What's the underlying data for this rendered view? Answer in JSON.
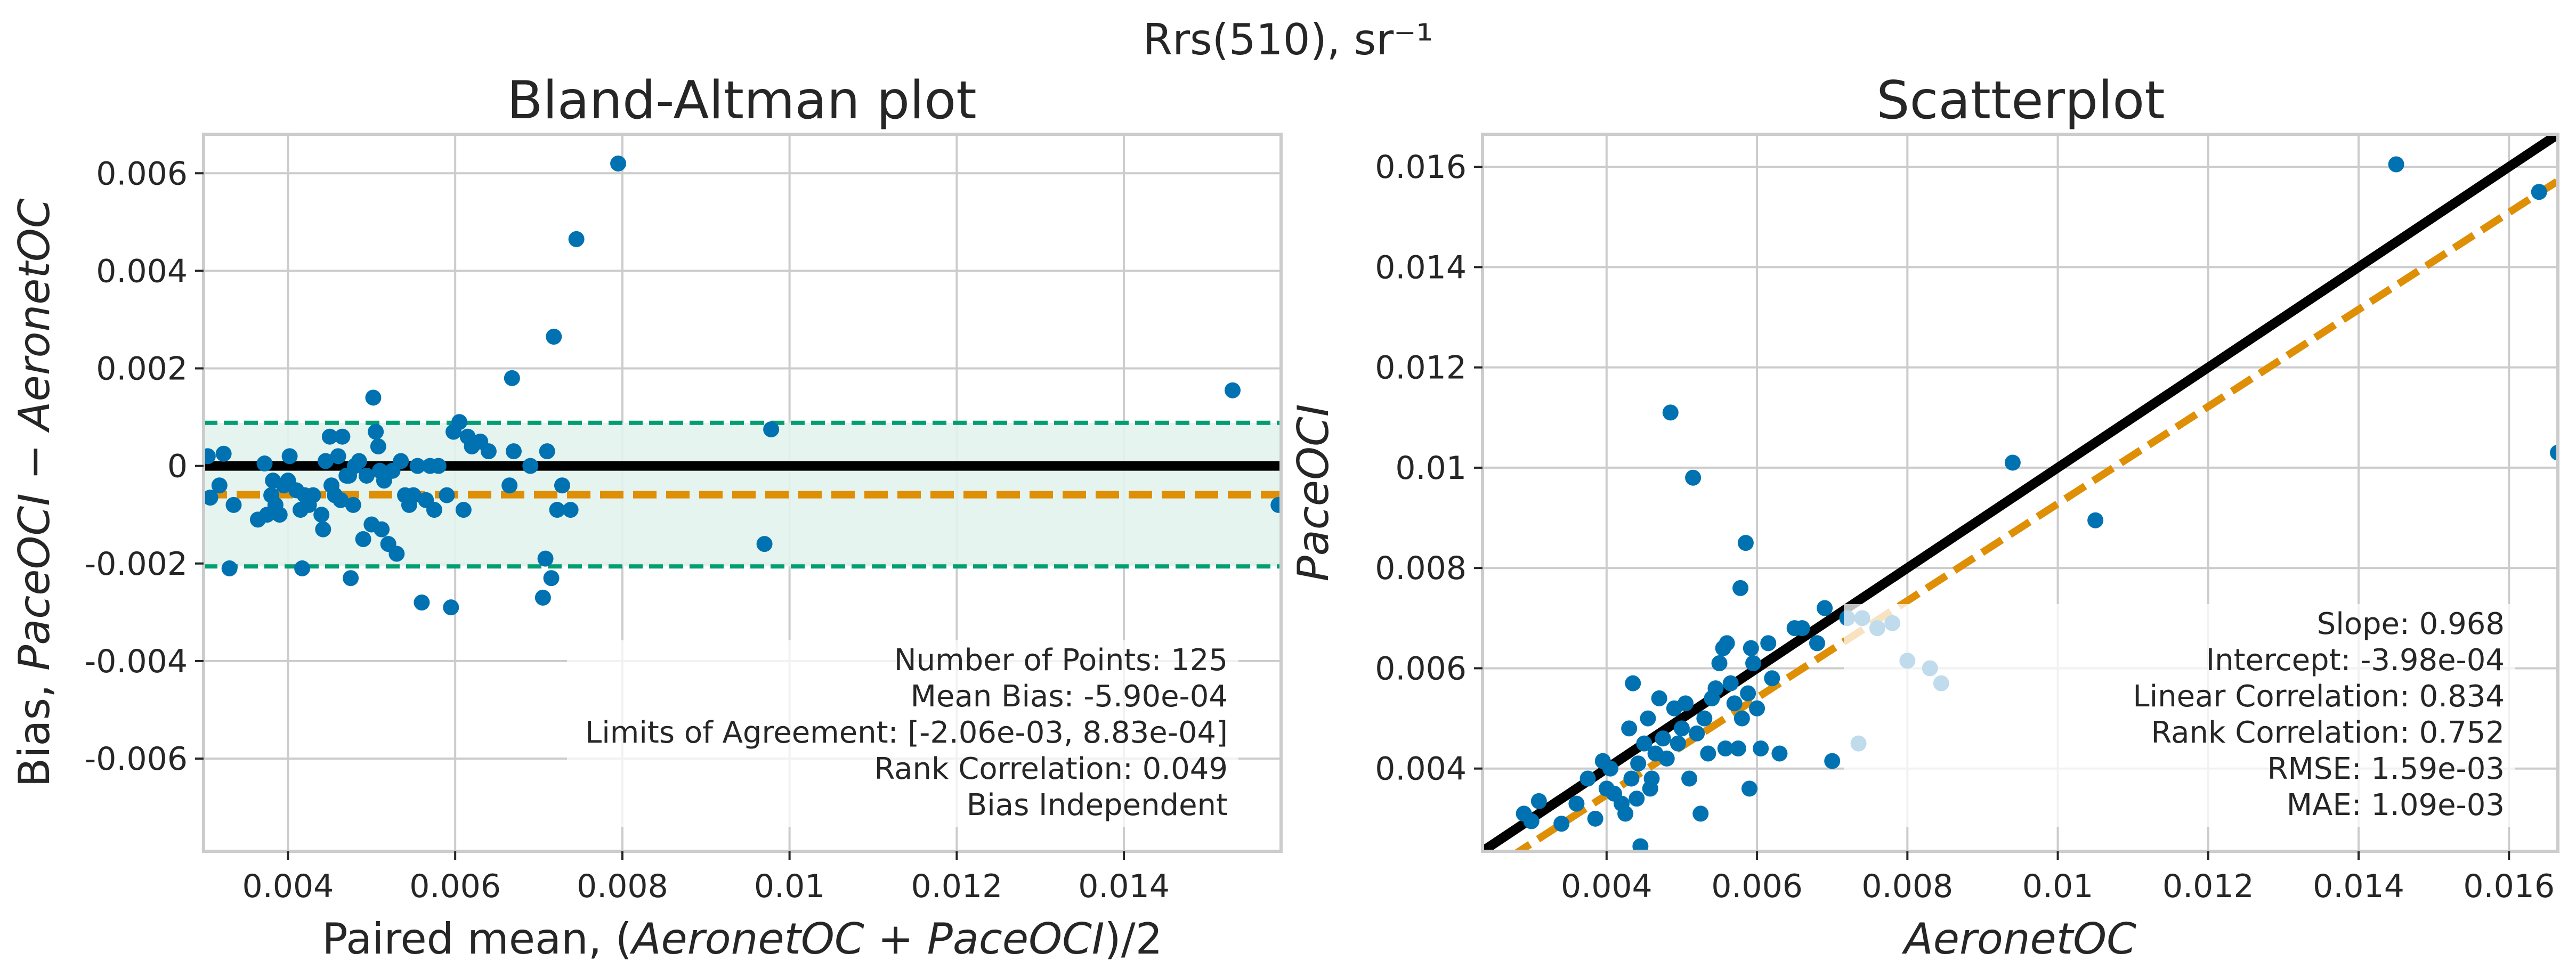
{
  "suptitle": "Rrs(510), sr⁻¹",
  "colors": {
    "points": "#0072b2",
    "identity_line": "#000000",
    "mean_bias_line": "#de8f05",
    "fit_line": "#de8f05",
    "limits_line": "#029e73",
    "limits_fill": "#e2f3ec",
    "grid": "#cccccc",
    "axes_edge": "#cccccc"
  },
  "chart_data": [
    {
      "type": "scatter",
      "title": "Bland-Altman plot",
      "xlabel_parts": [
        {
          "text": "Paired mean, (",
          "italic": false
        },
        {
          "text": "AeronetOC",
          "italic": true
        },
        {
          "text": " + ",
          "italic": false
        },
        {
          "text": "PaceOCI",
          "italic": true
        },
        {
          "text": ")/2",
          "italic": false
        }
      ],
      "ylabel_parts": [
        {
          "text": "Bias, ",
          "italic": false
        },
        {
          "text": "PaceOCI",
          "italic": true
        },
        {
          "text": " − ",
          "italic": false
        },
        {
          "text": "AeronetOC",
          "italic": true
        }
      ],
      "xlim": [
        0.00299,
        0.01588
      ],
      "ylim": [
        -0.0079,
        0.0068
      ],
      "xticks": [
        {
          "value": 0.004,
          "label": "0.004"
        },
        {
          "value": 0.006,
          "label": "0.006"
        },
        {
          "value": 0.008,
          "label": "0.008"
        },
        {
          "value": 0.01,
          "label": "0.01"
        },
        {
          "value": 0.012,
          "label": "0.012"
        },
        {
          "value": 0.014,
          "label": "0.014"
        }
      ],
      "yticks": [
        {
          "value": -0.006,
          "label": "-0.006"
        },
        {
          "value": -0.004,
          "label": "-0.004"
        },
        {
          "value": -0.002,
          "label": "-0.002"
        },
        {
          "value": 0,
          "label": "0"
        },
        {
          "value": 0.002,
          "label": "0.002"
        },
        {
          "value": 0.004,
          "label": "0.004"
        },
        {
          "value": 0.006,
          "label": "0.006"
        }
      ],
      "zero_line": 0,
      "mean_bias": -0.00059,
      "limits_of_agreement": [
        -0.00206,
        0.000883
      ],
      "points": [
        [
          0.00304,
          0.0002
        ],
        [
          0.00307,
          -0.00065
        ],
        [
          0.00318,
          -0.0004
        ],
        [
          0.00323,
          0.00025
        ],
        [
          0.0033,
          -0.0021
        ],
        [
          0.00335,
          -0.0008
        ],
        [
          0.00364,
          -0.0011
        ],
        [
          0.00372,
          5e-05
        ],
        [
          0.00375,
          -0.001
        ],
        [
          0.0038,
          -0.0006
        ],
        [
          0.00382,
          -0.0003
        ],
        [
          0.00385,
          -0.0008
        ],
        [
          0.0039,
          -0.001
        ],
        [
          0.00395,
          -0.0004
        ],
        [
          0.004,
          -0.0003
        ],
        [
          0.00402,
          0.0002
        ],
        [
          0.0041,
          -0.0005
        ],
        [
          0.00415,
          -0.0009
        ],
        [
          0.00417,
          -0.0021
        ],
        [
          0.0042,
          -0.0006
        ],
        [
          0.00425,
          -0.0008
        ],
        [
          0.0043,
          -0.0006
        ],
        [
          0.0044,
          -0.001
        ],
        [
          0.00442,
          -0.0013
        ],
        [
          0.00445,
          0.0001
        ],
        [
          0.0045,
          0.0006
        ],
        [
          0.00452,
          -0.0004
        ],
        [
          0.00456,
          -0.0006
        ],
        [
          0.0046,
          0.0002
        ],
        [
          0.00463,
          -0.0007
        ],
        [
          0.00465,
          0.0006
        ],
        [
          0.0047,
          -0.0002
        ],
        [
          0.00473,
          -0.0002
        ],
        [
          0.00475,
          -0.0023
        ],
        [
          0.00478,
          -0.0008
        ],
        [
          0.0048,
          0.0
        ],
        [
          0.00485,
          0.0001
        ],
        [
          0.0049,
          -0.0015
        ],
        [
          0.00494,
          -0.0002
        ],
        [
          0.005,
          -0.0012
        ],
        [
          0.00502,
          0.0014
        ],
        [
          0.00505,
          0.0007
        ],
        [
          0.00508,
          0.0004
        ],
        [
          0.0051,
          -0.0001
        ],
        [
          0.00512,
          -0.0013
        ],
        [
          0.00515,
          -0.0003
        ],
        [
          0.0052,
          -0.0016
        ],
        [
          0.00525,
          -0.0001
        ],
        [
          0.0053,
          -0.0018
        ],
        [
          0.00535,
          0.0001
        ],
        [
          0.0054,
          -0.0006
        ],
        [
          0.00545,
          -0.0008
        ],
        [
          0.0055,
          -0.0006
        ],
        [
          0.00555,
          0.0
        ],
        [
          0.0056,
          -0.0028
        ],
        [
          0.00565,
          -0.0007
        ],
        [
          0.0057,
          0.0
        ],
        [
          0.00575,
          -0.0009
        ],
        [
          0.0058,
          0.0
        ],
        [
          0.0059,
          -0.0006
        ],
        [
          0.00595,
          -0.0029
        ],
        [
          0.00598,
          0.0007
        ],
        [
          0.00605,
          0.0009
        ],
        [
          0.0061,
          -0.0009
        ],
        [
          0.00615,
          0.0006
        ],
        [
          0.0062,
          0.0004
        ],
        [
          0.0063,
          0.0005
        ],
        [
          0.0064,
          0.0003
        ],
        [
          0.00665,
          -0.0004
        ],
        [
          0.00668,
          0.0018
        ],
        [
          0.0067,
          0.0003
        ],
        [
          0.0069,
          0.0
        ],
        [
          0.00705,
          -0.0027
        ],
        [
          0.00708,
          -0.0019
        ],
        [
          0.0071,
          0.0003
        ],
        [
          0.00715,
          -0.0023
        ],
        [
          0.00718,
          0.00265
        ],
        [
          0.00722,
          -0.0009
        ],
        [
          0.00728,
          -0.0004
        ],
        [
          0.00738,
          -0.0009
        ],
        [
          0.00745,
          0.00465
        ],
        [
          0.00795,
          0.0062
        ],
        [
          0.0097,
          -0.0016
        ],
        [
          0.00978,
          0.00075
        ],
        [
          0.0153,
          0.00155
        ],
        [
          0.01585,
          -0.0008
        ]
      ],
      "stats": [
        "Number of Points: 125",
        "Mean Bias: -5.90e-04",
        "Limits of Agreement: [-2.06e-03, 8.83e-04]",
        "Rank Correlation: 0.049",
        "Bias Independent"
      ]
    },
    {
      "type": "scatter",
      "title": "Scatterplot",
      "xlabel_parts": [
        {
          "text": "AeronetOC",
          "italic": true
        }
      ],
      "ylabel_parts": [
        {
          "text": "PaceOCI",
          "italic": true
        }
      ],
      "xlim": [
        0.00235,
        0.01665
      ],
      "ylim": [
        0.00235,
        0.01665
      ],
      "xticks": [
        {
          "value": 0.004,
          "label": "0.004"
        },
        {
          "value": 0.006,
          "label": "0.006"
        },
        {
          "value": 0.008,
          "label": "0.008"
        },
        {
          "value": 0.01,
          "label": "0.01"
        },
        {
          "value": 0.012,
          "label": "0.012"
        },
        {
          "value": 0.014,
          "label": "0.014"
        },
        {
          "value": 0.016,
          "label": "0.016"
        }
      ],
      "yticks": [
        {
          "value": 0.004,
          "label": "0.004"
        },
        {
          "value": 0.006,
          "label": "0.006"
        },
        {
          "value": 0.008,
          "label": "0.008"
        },
        {
          "value": 0.01,
          "label": "0.01"
        },
        {
          "value": 0.012,
          "label": "0.012"
        },
        {
          "value": 0.014,
          "label": "0.014"
        },
        {
          "value": 0.016,
          "label": "0.016"
        }
      ],
      "identity_line": {
        "slope": 1,
        "intercept": 0
      },
      "fit_line": {
        "slope": 0.968,
        "intercept": -0.000398
      },
      "points": [
        [
          0.0029,
          0.0031
        ],
        [
          0.003,
          0.00295
        ],
        [
          0.0031,
          0.00335
        ],
        [
          0.0034,
          0.0029
        ],
        [
          0.0036,
          0.0033
        ],
        [
          0.00375,
          0.0038
        ],
        [
          0.00385,
          0.003
        ],
        [
          0.00395,
          0.00415
        ],
        [
          0.004,
          0.0036
        ],
        [
          0.00405,
          0.004
        ],
        [
          0.0041,
          0.0035
        ],
        [
          0.0042,
          0.0033
        ],
        [
          0.00425,
          0.0031
        ],
        [
          0.0043,
          0.0048
        ],
        [
          0.00433,
          0.0038
        ],
        [
          0.00435,
          0.0057
        ],
        [
          0.0044,
          0.0034
        ],
        [
          0.00442,
          0.0041
        ],
        [
          0.00445,
          0.00245
        ],
        [
          0.0045,
          0.0045
        ],
        [
          0.00455,
          0.005
        ],
        [
          0.00458,
          0.0036
        ],
        [
          0.0046,
          0.0038
        ],
        [
          0.00465,
          0.0043
        ],
        [
          0.0047,
          0.0054
        ],
        [
          0.00475,
          0.0046
        ],
        [
          0.0048,
          0.0042
        ],
        [
          0.00485,
          0.0111
        ],
        [
          0.0049,
          0.0052
        ],
        [
          0.00495,
          0.0045
        ],
        [
          0.005,
          0.0048
        ],
        [
          0.00505,
          0.0053
        ],
        [
          0.0051,
          0.0038
        ],
        [
          0.00515,
          0.0098
        ],
        [
          0.0052,
          0.0047
        ],
        [
          0.00525,
          0.0031
        ],
        [
          0.0053,
          0.005
        ],
        [
          0.00535,
          0.0043
        ],
        [
          0.0054,
          0.0054
        ],
        [
          0.00545,
          0.0056
        ],
        [
          0.0055,
          0.0061
        ],
        [
          0.00555,
          0.0064
        ],
        [
          0.00558,
          0.0044
        ],
        [
          0.0056,
          0.0065
        ],
        [
          0.00565,
          0.0057
        ],
        [
          0.0057,
          0.0053
        ],
        [
          0.00575,
          0.0044
        ],
        [
          0.00578,
          0.0076
        ],
        [
          0.0058,
          0.005
        ],
        [
          0.00585,
          0.0085
        ],
        [
          0.00588,
          0.0055
        ],
        [
          0.0059,
          0.0036
        ],
        [
          0.00592,
          0.0064
        ],
        [
          0.00595,
          0.0061
        ],
        [
          0.006,
          0.0052
        ],
        [
          0.00605,
          0.0044
        ],
        [
          0.00615,
          0.0065
        ],
        [
          0.0062,
          0.0058
        ],
        [
          0.0063,
          0.0043
        ],
        [
          0.0065,
          0.0068
        ],
        [
          0.0066,
          0.0068
        ],
        [
          0.0068,
          0.0065
        ],
        [
          0.0069,
          0.0072
        ],
        [
          0.007,
          0.00415
        ],
        [
          0.0072,
          0.007
        ],
        [
          0.00735,
          0.0045
        ],
        [
          0.0074,
          0.007
        ],
        [
          0.0076,
          0.0068
        ],
        [
          0.0078,
          0.0069
        ],
        [
          0.008,
          0.00615
        ],
        [
          0.0083,
          0.006
        ],
        [
          0.00845,
          0.0057
        ],
        [
          0.0094,
          0.0101
        ],
        [
          0.0105,
          0.00895
        ],
        [
          0.0145,
          0.01605
        ],
        [
          0.0164,
          0.0155
        ],
        [
          0.01665,
          0.0103
        ]
      ],
      "stats": [
        "Slope: 0.968",
        "Intercept: -3.98e-04",
        "Linear Correlation: 0.834",
        "Rank Correlation: 0.752",
        "RMSE: 1.59e-03",
        "MAE: 1.09e-03"
      ]
    }
  ]
}
